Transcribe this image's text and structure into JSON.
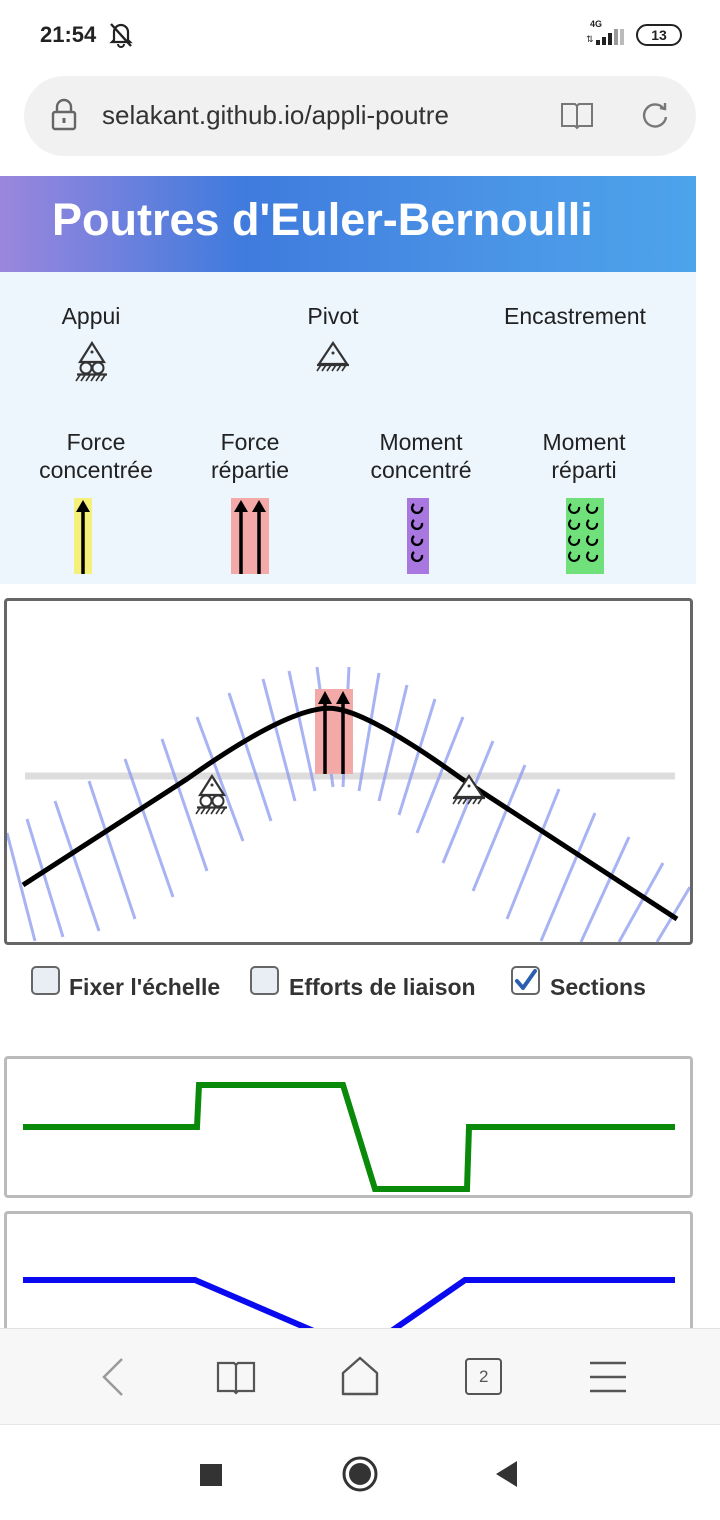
{
  "status": {
    "time": "21:54",
    "network": "4G",
    "battery": "13"
  },
  "browser": {
    "url": "selakant.github.io/appli-poutre",
    "tab_count": "2"
  },
  "header": {
    "title": "Poutres d'Euler-Bernoulli"
  },
  "palette": {
    "supports": [
      {
        "line1": "Appui",
        "icon": "roller-support-icon"
      },
      {
        "line1": "Pivot",
        "icon": "pin-support-icon"
      },
      {
        "line1": "Encastrement",
        "icon": "fixed-support-icon"
      }
    ],
    "loads": [
      {
        "line1": "Force",
        "line2": "concentrée",
        "icon": "point-force-icon",
        "color": "#f5f07a"
      },
      {
        "line1": "Force",
        "line2": "répartie",
        "icon": "distributed-force-icon",
        "color": "#f4a9a9"
      },
      {
        "line1": "Moment",
        "line2": "concentré",
        "icon": "point-moment-icon",
        "color": "#a878e0"
      },
      {
        "line1": "Moment",
        "line2": "réparti",
        "icon": "distributed-moment-icon",
        "color": "#6fe07a"
      }
    ]
  },
  "options": [
    {
      "label": "Fixer l'échelle",
      "checked": false
    },
    {
      "label": "Efforts de liaison",
      "checked": false
    },
    {
      "label": "Sections",
      "checked": true
    }
  ],
  "colors": {
    "shear_diagram": "#0a8a0a",
    "moment_diagram": "#0a0af0",
    "sections": "#8c9af0",
    "deformed_beam": "#000000",
    "reference_beam": "#dddddd"
  }
}
